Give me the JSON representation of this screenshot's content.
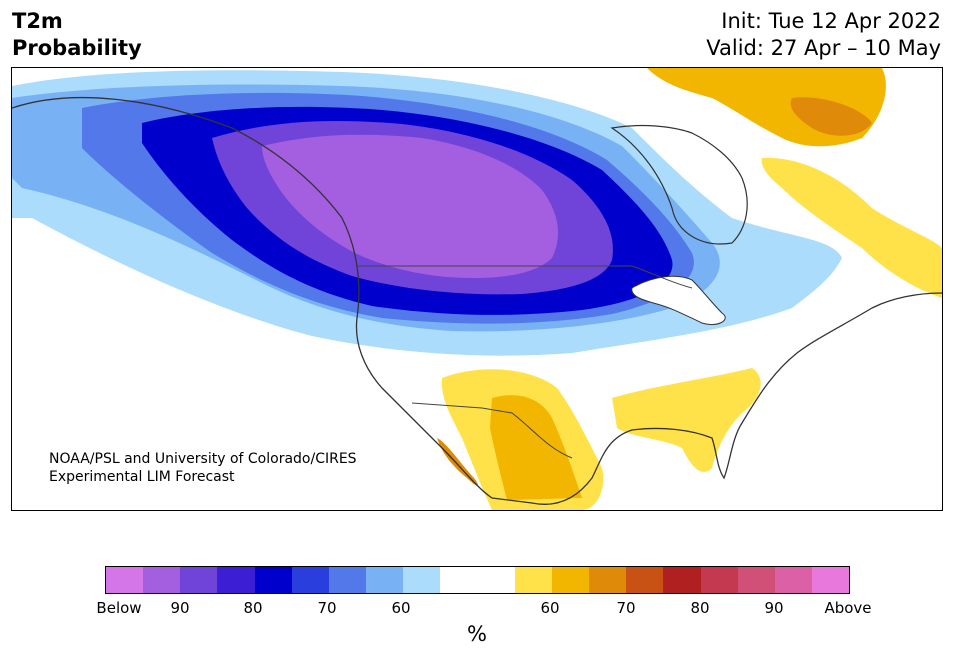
{
  "title": {
    "line1": "T2m",
    "line2": "Probability"
  },
  "dates": {
    "init": "Init: Tue 12 Apr 2022",
    "valid": "Valid: 27 Apr – 10 May"
  },
  "credit": {
    "line1": "NOAA/PSL and University of Colorado/CIRES",
    "line2": "Experimental LIM Forecast"
  },
  "colorbar": {
    "unit": "%",
    "tick_labels": [
      "Below",
      "90",
      "80",
      "70",
      "60",
      "60",
      "70",
      "80",
      "90",
      "Above"
    ],
    "colors": [
      "#d476e8",
      "#a45ee0",
      "#7044d8",
      "#3c1ed4",
      "#0000cc",
      "#2a3ede",
      "#5278ea",
      "#78b2f4",
      "#acdcfc",
      "#ffffff",
      "#ffffff",
      "#ffe14a",
      "#f2b600",
      "#e08a0a",
      "#c85214",
      "#b02020",
      "#c43850",
      "#d05078",
      "#dc60a6",
      "#e878dc"
    ]
  },
  "map_colors": {
    "cold_90": "#a45ee0",
    "cold_80": "#7044d8",
    "cold_70": "#0000cc",
    "cold_60": "#5278ea",
    "cold_50": "#78b2f4",
    "cold_40": "#acdcfc",
    "warm_60": "#ffe14a",
    "warm_65": "#f2b600",
    "warm_70": "#e08a0a",
    "coast": "#333333"
  }
}
